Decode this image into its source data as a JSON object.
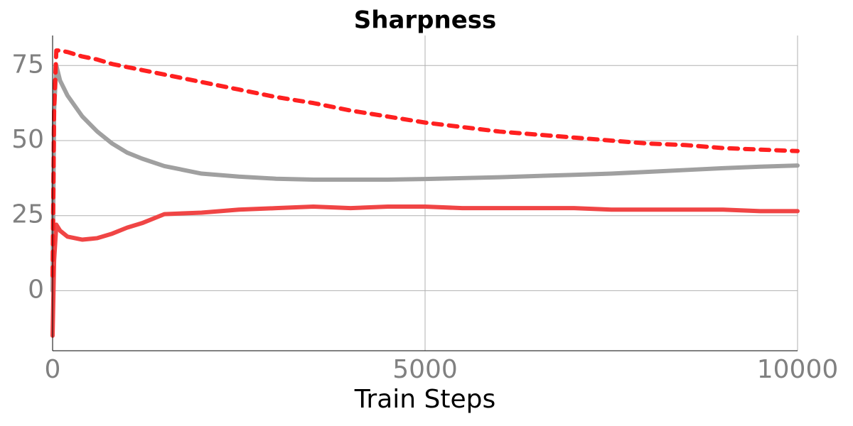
{
  "chart_data": {
    "type": "line",
    "title": "Sharpness",
    "xlabel": "Train Steps",
    "x": [
      0,
      20,
      50,
      100,
      200,
      400,
      600,
      800,
      1000,
      1200,
      1500,
      2000,
      2500,
      3000,
      3500,
      4000,
      4500,
      5000,
      5500,
      6000,
      6500,
      7000,
      7500,
      8000,
      8500,
      9000,
      9500,
      10000
    ],
    "series": [
      {
        "color": "#a0a0a0",
        "linestyle": "solid",
        "values": [
          0,
          60,
          75,
          70,
          65,
          58,
          53,
          49,
          46,
          44,
          41.5,
          39,
          38,
          37.3,
          37,
          37,
          37,
          37.2,
          37.5,
          37.8,
          38.2,
          38.6,
          39,
          39.6,
          40.2,
          40.8,
          41.3,
          41.7
        ]
      },
      {
        "color": "#f04545",
        "linestyle": "solid",
        "values": [
          -15,
          10,
          22,
          20,
          18,
          17,
          17.5,
          19,
          21,
          22.5,
          25.5,
          26,
          27,
          27.5,
          28,
          27.5,
          28,
          28,
          27.5,
          27.5,
          27.5,
          27.5,
          27,
          27,
          27,
          27,
          26.5,
          26.5
        ]
      },
      {
        "color": "#ff2020",
        "linestyle": "dashed",
        "values": [
          5,
          60,
          80,
          80,
          79.5,
          78,
          77,
          75.5,
          74.5,
          73.5,
          72,
          69.5,
          67,
          64.5,
          62.5,
          60,
          58,
          56,
          54.5,
          53,
          52,
          51,
          50,
          49,
          48.5,
          47.5,
          47,
          46.5
        ]
      }
    ],
    "xlim": [
      0,
      10000
    ],
    "xticks": [
      0,
      5000,
      10000
    ],
    "ylim": [
      -20,
      85
    ],
    "yticks": [
      0,
      25,
      50,
      75
    ],
    "grid": true
  }
}
